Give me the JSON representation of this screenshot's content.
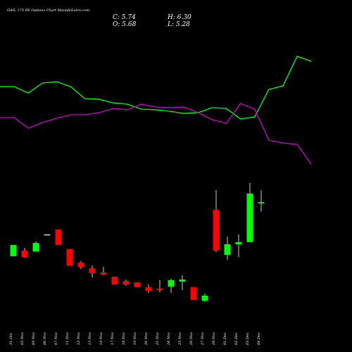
{
  "chart_data": {
    "type": "candlestick",
    "title": "GAIL 175 PE Options Chart MunafaSutra.com",
    "ohlc_labels": [
      "C: 5.74",
      "H: 6.30",
      "O: 5.68",
      "L: 5.28"
    ],
    "categories": [
      "31 Oct",
      "03 Nov",
      "04 Nov",
      "06 Nov",
      "07 Nov",
      "11 Nov",
      "12 Nov",
      "13 Nov",
      "14 Nov",
      "17 Nov",
      "18 Nov",
      "19 Nov",
      "20 Nov",
      "21 Nov",
      "24 Nov",
      "25 Nov",
      "26 Nov",
      "27 Nov",
      "28 Nov",
      "01 Dec",
      "02 Dec",
      "03 Dec",
      "04 Dec"
    ],
    "open": [
      3.12,
      3.39,
      3.35,
      4.17,
      4.41,
      3.46,
      2.81,
      2.54,
      2.33,
      2.13,
      1.92,
      1.86,
      1.62,
      1.55,
      1.65,
      1.89,
      1.62,
      0.97,
      5.36,
      3.18,
      3.7,
      3.8,
      5.68
    ],
    "high": [
      3.66,
      3.52,
      3.83,
      4.17,
      4.41,
      3.46,
      2.88,
      2.67,
      2.6,
      2.13,
      1.99,
      1.86,
      1.75,
      1.96,
      2.03,
      2.2,
      1.62,
      1.31,
      6.32,
      4.07,
      4.17,
      6.66,
      6.3
    ],
    "low": [
      3.12,
      3.05,
      3.35,
      4.17,
      3.66,
      2.67,
      2.5,
      2.09,
      2.2,
      1.75,
      1.68,
      1.62,
      1.34,
      1.38,
      1.34,
      1.48,
      1.0,
      0.9,
      3.32,
      2.95,
      3.08,
      3.8,
      5.28
    ],
    "close": [
      3.66,
      3.08,
      3.76,
      4.17,
      3.66,
      2.67,
      2.6,
      2.3,
      2.23,
      1.75,
      1.75,
      1.62,
      1.45,
      1.48,
      1.96,
      1.99,
      1.0,
      1.21,
      3.39,
      3.7,
      3.8,
      6.15,
      5.74
    ],
    "up_color": "#00ff00",
    "down_color": "#ff0000",
    "flat_color": "#ffffff",
    "ylim": [
      0.8,
      7
    ],
    "lines": [
      {
        "color": "#00ff00",
        "values": [
          66.8,
          66.8,
          62.1,
          69.5,
          70.5,
          66.8,
          57.9,
          57.4,
          54.7,
          53.7,
          50.0,
          49.5,
          48.4,
          46.8,
          47.4,
          51.1,
          50.5,
          42.6,
          44.2,
          64.7,
          67.4,
          89.5,
          85.8
        ]
      },
      {
        "color": "#cc00cc",
        "values": [
          43.7,
          43.7,
          35.8,
          40.0,
          43.2,
          45.8,
          45.8,
          47.4,
          50.5,
          49.5,
          53.7,
          51.6,
          51.1,
          51.6,
          47.4,
          42.1,
          39.5,
          54.2,
          50.0,
          26.8,
          24.7,
          23.7,
          8.9
        ]
      }
    ],
    "y2lim": [
      0,
      100
    ]
  }
}
